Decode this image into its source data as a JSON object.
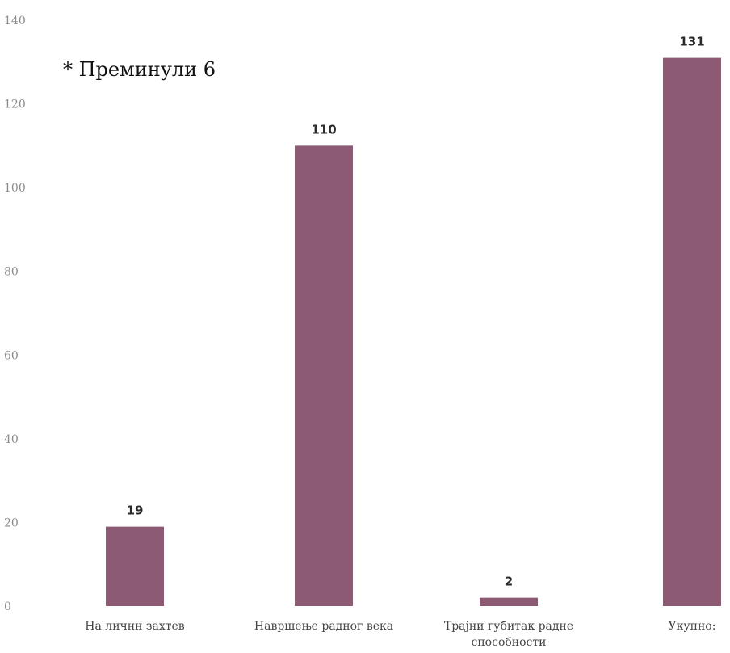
{
  "chart_data": {
    "type": "bar",
    "title": "",
    "xlabel": "",
    "ylabel": "",
    "categories": [
      [
        "На личнн захтев"
      ],
      [
        "Навршење радног века"
      ],
      [
        "Трајни губитак радне",
        "способности"
      ],
      [
        "Укупно:"
      ]
    ],
    "values": [
      19,
      110,
      2,
      131
    ],
    "ylim": [
      0,
      140
    ],
    "yticks": [
      "0",
      "20",
      "40",
      "60",
      "80",
      "100",
      "120",
      "140"
    ],
    "grid": false,
    "bar_color": "#8c5a73",
    "annotation": "* Преминули 6"
  }
}
